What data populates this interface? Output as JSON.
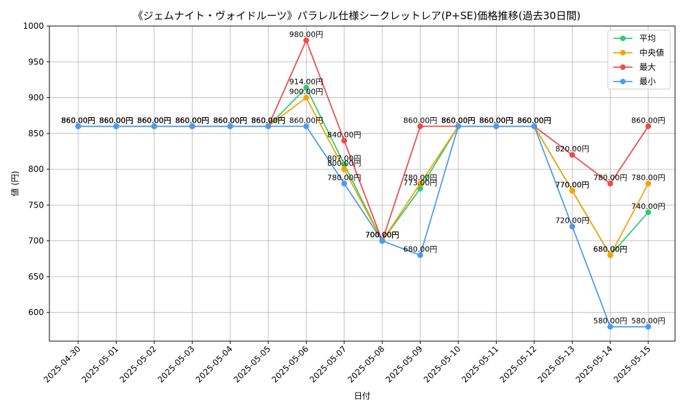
{
  "chart_data": {
    "type": "line",
    "title": "《ジェムナイト・ヴォイドルーツ》パラレル仕様シークレットレア(P+SE)価格推移(過去30日間)",
    "xlabel": "日付",
    "ylabel": "値 (円)",
    "ylim": [
      560,
      1000
    ],
    "yticks": [
      600,
      650,
      700,
      750,
      800,
      850,
      900,
      950,
      1000
    ],
    "grid": true,
    "legend_position": "top-right",
    "categories": [
      "2025-04-30",
      "2025-05-01",
      "2025-05-02",
      "2025-05-03",
      "2025-05-04",
      "2025-05-05",
      "2025-05-06",
      "2025-05-07",
      "2025-05-08",
      "2025-05-09",
      "2025-05-10",
      "2025-05-11",
      "2025-05-12",
      "2025-05-13",
      "2025-05-14",
      "2025-05-15"
    ],
    "value_suffix": "円",
    "series": [
      {
        "name": "平均",
        "color": "#2ecc71",
        "values": [
          860,
          860,
          860,
          860,
          860,
          860,
          914,
          807,
          700,
          773,
          860,
          860,
          860,
          770,
          680,
          740
        ]
      },
      {
        "name": "中央値",
        "color": "#f4a300",
        "values": [
          860,
          860,
          860,
          860,
          860,
          860,
          900,
          800,
          700,
          780,
          860,
          860,
          860,
          770,
          680,
          780
        ]
      },
      {
        "name": "最大",
        "color": "#ef4a4a",
        "values": [
          860,
          860,
          860,
          860,
          860,
          860,
          980,
          840,
          700,
          860,
          860,
          860,
          860,
          820,
          780,
          860
        ]
      },
      {
        "name": "最小",
        "color": "#4a9af0",
        "values": [
          860,
          860,
          860,
          860,
          860,
          860,
          860,
          780,
          700,
          680,
          860,
          860,
          860,
          720,
          580,
          580
        ]
      }
    ]
  }
}
